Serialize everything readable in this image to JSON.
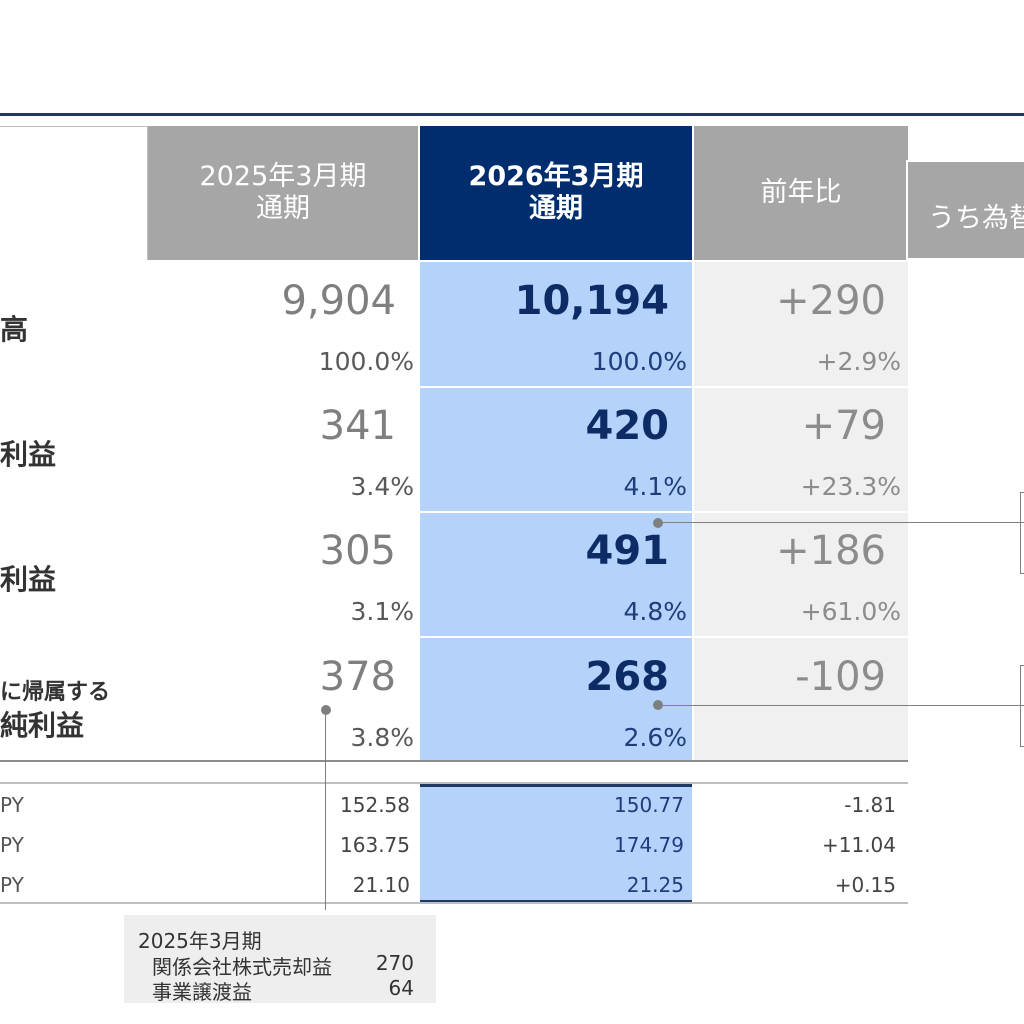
{
  "header": {
    "prev_period_line1": "2025年3月期",
    "prev_period_line2": "通期",
    "cur_period_line1": "2026年3月期",
    "cur_period_line2": "通期",
    "yoy": "前年比",
    "fx": "うち為替"
  },
  "rows": [
    {
      "label": "高",
      "prev": "9,904",
      "cur": "10,194",
      "yoy": "+290",
      "prev_pct": "100.0%",
      "cur_pct": "100.0%",
      "yoy_pct": "+2.9%"
    },
    {
      "label": "利益",
      "prev": "341",
      "cur": "420",
      "yoy": "+79",
      "prev_pct": "3.4%",
      "cur_pct": "4.1%",
      "yoy_pct": "+23.3%"
    },
    {
      "label": "利益",
      "prev": "305",
      "cur": "491",
      "yoy": "+186",
      "prev_pct": "3.1%",
      "cur_pct": "4.8%",
      "yoy_pct": "+61.0%"
    },
    {
      "label_line1": "に帰属する",
      "label_line2": "純利益",
      "prev": "378",
      "cur": "268",
      "yoy": "-109",
      "prev_pct": "3.8%",
      "cur_pct": "2.6%",
      "yoy_pct": ""
    }
  ],
  "fx_rates": [
    {
      "label": "PY",
      "prev": "152.58",
      "cur": "150.77",
      "yoy": "-1.81"
    },
    {
      "label": "PY",
      "prev": "163.75",
      "cur": "174.79",
      "yoy": "+11.04"
    },
    {
      "label": "PY",
      "prev": "21.10",
      "cur": "21.25",
      "yoy": "+0.15"
    }
  ],
  "note": {
    "title": "2025年3月期",
    "items": [
      {
        "label": "関係会社株式売却益",
        "value": "270"
      },
      {
        "label": "事業譲渡益",
        "value": "64"
      }
    ]
  }
}
